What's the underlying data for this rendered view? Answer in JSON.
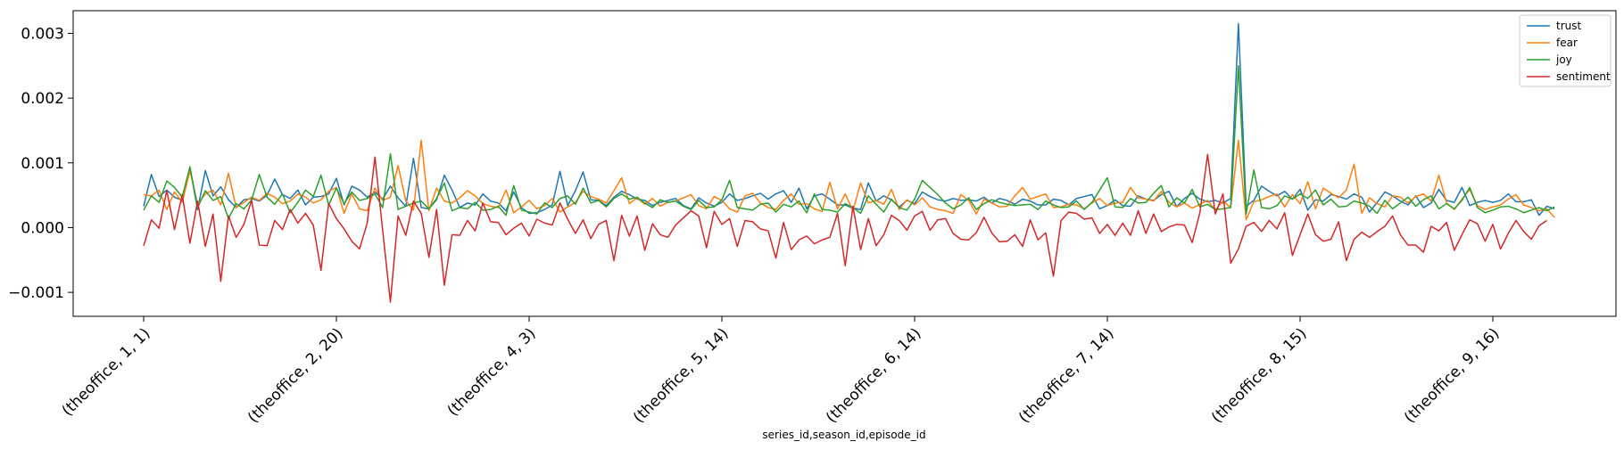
{
  "chart_data": {
    "type": "line",
    "xlabel": "series_id,season_id,episode_id",
    "ylabel": "",
    "ylim": [
      -0.00137,
      0.00335
    ],
    "x_tick_labels": [
      "(theoffice, 1, 1)",
      "(theoffice, 2, 20)",
      "(theoffice, 4, 3)",
      "(theoffice, 5, 14)",
      "(theoffice, 6, 14)",
      "(theoffice, 7, 14)",
      "(theoffice, 8, 15)",
      "(theoffice, 9, 16)"
    ],
    "x_tick_index": [
      0,
      25,
      50,
      75,
      100,
      125,
      150,
      175
    ],
    "y_ticks": [
      -0.001,
      0.0,
      0.001,
      0.002,
      0.003
    ],
    "y_tick_labels": [
      "−0.001",
      "0.000",
      "0.001",
      "0.002",
      "0.003"
    ],
    "legend_position": "top-right",
    "grid": false,
    "series": [
      {
        "name": "trust",
        "color": "#1f77b4",
        "values": [
          0.00033,
          0.00082,
          0.00048,
          0.00058,
          0.00047,
          0.00042,
          0.00092,
          0.00028,
          0.00088,
          0.00049,
          0.00063,
          0.00043,
          0.00031,
          0.00043,
          0.00045,
          0.00041,
          0.0005,
          0.00075,
          0.00051,
          0.00045,
          0.00058,
          0.00035,
          0.00047,
          0.00048,
          0.00052,
          0.00076,
          0.00035,
          0.00064,
          0.00058,
          0.00047,
          0.00055,
          0.00044,
          0.00064,
          0.00046,
          0.00033,
          0.00107,
          0.00031,
          0.00029,
          0.00043,
          0.00081,
          0.00058,
          0.00031,
          0.00038,
          0.00035,
          0.00052,
          0.00041,
          0.00038,
          0.00026,
          0.00055,
          0.00031,
          0.00022,
          0.00023,
          0.00028,
          0.00035,
          0.00087,
          0.00034,
          0.00057,
          0.00086,
          0.00043,
          0.00042,
          0.00034,
          0.00047,
          0.00056,
          0.00051,
          0.00044,
          0.00042,
          0.00034,
          0.00039,
          0.00042,
          0.00045,
          0.00034,
          0.00029,
          0.00046,
          0.00038,
          0.00033,
          0.00039,
          0.00052,
          0.00042,
          0.00045,
          0.00049,
          0.00053,
          0.00044,
          0.00052,
          0.00057,
          0.00039,
          0.00061,
          0.00029,
          0.00049,
          0.00052,
          0.00044,
          0.00035,
          0.00035,
          0.0003,
          0.00028,
          0.00069,
          0.00041,
          0.00049,
          0.00043,
          0.00032,
          0.00042,
          0.00037,
          0.00055,
          0.00048,
          0.00043,
          0.00041,
          0.00045,
          0.00042,
          0.00043,
          0.00041,
          0.00047,
          0.00038,
          0.00045,
          0.00042,
          0.00036,
          0.00044,
          0.00041,
          0.00035,
          0.00035,
          0.00044,
          0.00042,
          0.00035,
          0.00045,
          0.00048,
          0.00051,
          0.00029,
          0.00034,
          0.00043,
          0.00034,
          0.00033,
          0.00049,
          0.00044,
          0.00042,
          0.00051,
          0.00056,
          0.00032,
          0.00045,
          0.00053,
          0.00044,
          0.0004,
          0.00042,
          0.00038,
          0.00045,
          0.00315,
          0.00033,
          0.00042,
          0.00064,
          0.00056,
          0.00049,
          0.00056,
          0.00044,
          0.00059,
          0.00027,
          0.00043,
          0.00041,
          0.00051,
          0.00048,
          0.00044,
          0.00052,
          0.00047,
          0.00024,
          0.00039,
          0.00055,
          0.00049,
          0.00041,
          0.00035,
          0.00049,
          0.00031,
          0.00038,
          0.00059,
          0.00042,
          0.00039,
          0.00062,
          0.00034,
          0.00039,
          0.00042,
          0.00039,
          0.00042,
          0.00052,
          0.0004,
          0.0004,
          0.00043,
          0.00019,
          0.00033,
          0.00029
        ]
      },
      {
        "name": "fear",
        "color": "#ff7f0e",
        "values": [
          0.00051,
          0.00049,
          0.00058,
          0.00028,
          0.00055,
          0.00039,
          0.00088,
          0.00036,
          0.00052,
          0.00058,
          0.00035,
          0.00084,
          0.00031,
          0.00039,
          0.00047,
          0.00042,
          0.00053,
          0.00047,
          0.00037,
          0.00041,
          0.00052,
          0.00047,
          0.00038,
          0.00043,
          0.00056,
          0.00062,
          0.00022,
          0.00052,
          0.00029,
          0.00026,
          0.00061,
          0.00042,
          0.00047,
          0.00096,
          0.00041,
          0.00027,
          0.00135,
          0.00026,
          0.00061,
          0.00041,
          0.00038,
          0.00046,
          0.00057,
          0.00049,
          0.00037,
          0.00033,
          0.00031,
          0.00058,
          0.00023,
          0.00032,
          0.00042,
          0.00029,
          0.00034,
          0.00045,
          0.00024,
          0.00032,
          0.00039,
          0.00056,
          0.00048,
          0.00044,
          0.00038,
          0.00057,
          0.00077,
          0.00037,
          0.00046,
          0.00036,
          0.00045,
          0.00033,
          0.00039,
          0.00041,
          0.00046,
          0.00051,
          0.00034,
          0.00029,
          0.00048,
          0.00042,
          0.00029,
          0.00024,
          0.00049,
          0.00053,
          0.00038,
          0.00031,
          0.00028,
          0.00042,
          0.00052,
          0.00036,
          0.00037,
          0.00029,
          0.00025,
          0.0007,
          0.00029,
          0.00052,
          0.00026,
          0.00069,
          0.00038,
          0.00042,
          0.00036,
          0.00059,
          0.00028,
          0.00043,
          0.00035,
          0.00046,
          0.00032,
          0.00028,
          0.00026,
          0.00022,
          0.00051,
          0.00042,
          0.00021,
          0.00044,
          0.00038,
          0.00032,
          0.00033,
          0.00049,
          0.00062,
          0.00044,
          0.00048,
          0.00052,
          0.00031,
          0.00032,
          0.00036,
          0.00035,
          0.00029,
          0.00038,
          0.00045,
          0.00034,
          0.00038,
          0.00039,
          0.00062,
          0.00046,
          0.00044,
          0.00041,
          0.00056,
          0.00039,
          0.00032,
          0.00038,
          0.0003,
          0.00036,
          0.00042,
          0.00027,
          0.00041,
          0.00031,
          0.00135,
          0.00012,
          0.0004,
          0.00043,
          0.00048,
          0.00052,
          0.00032,
          0.00051,
          0.00037,
          0.00071,
          0.00029,
          0.00061,
          0.00053,
          0.00046,
          0.00058,
          0.00098,
          0.00022,
          0.00046,
          0.00037,
          0.00032,
          0.00049,
          0.00047,
          0.00038,
          0.00048,
          0.00052,
          0.00041,
          0.00081,
          0.00038,
          0.00028,
          0.00044,
          0.00059,
          0.00034,
          0.00028,
          0.00032,
          0.00035,
          0.00044,
          0.00051,
          0.00035,
          0.00031,
          0.00026,
          0.00029,
          0.00016
        ]
      },
      {
        "name": "joy",
        "color": "#2ca02c",
        "values": [
          0.00027,
          0.00049,
          0.00039,
          0.00072,
          0.00062,
          0.00047,
          0.00094,
          0.00031,
          0.00057,
          0.00042,
          0.00048,
          0.00014,
          0.00037,
          0.00029,
          0.00043,
          0.00082,
          0.00047,
          0.00036,
          0.00052,
          0.00023,
          0.00039,
          0.00058,
          0.00048,
          0.00081,
          0.00035,
          0.00061,
          0.00037,
          0.00055,
          0.00042,
          0.00045,
          0.00052,
          0.00031,
          0.00114,
          0.00028,
          0.00033,
          0.00038,
          0.00041,
          0.00029,
          0.00045,
          0.00069,
          0.00026,
          0.00031,
          0.00029,
          0.00039,
          0.00027,
          0.00028,
          0.00033,
          0.00019,
          0.00065,
          0.00027,
          0.00024,
          0.00021,
          0.00038,
          0.00031,
          0.00045,
          0.00049,
          0.00036,
          0.00061,
          0.00038,
          0.00042,
          0.00032,
          0.00045,
          0.00052,
          0.00044,
          0.00047,
          0.00038,
          0.00031,
          0.00043,
          0.00039,
          0.00041,
          0.00033,
          0.00028,
          0.00042,
          0.00031,
          0.00032,
          0.00043,
          0.00073,
          0.00031,
          0.00029,
          0.00027,
          0.00036,
          0.00038,
          0.00024,
          0.00036,
          0.00032,
          0.00041,
          0.00023,
          0.00052,
          0.00028,
          0.00027,
          0.00024,
          0.00037,
          0.00031,
          0.00022,
          0.00049,
          0.00036,
          0.00024,
          0.00044,
          0.00031,
          0.00027,
          0.00044,
          0.00073,
          0.00062,
          0.00051,
          0.00038,
          0.00029,
          0.00035,
          0.00046,
          0.00028,
          0.00037,
          0.00043,
          0.00039,
          0.00036,
          0.00034,
          0.00035,
          0.00036,
          0.00028,
          0.00041,
          0.00035,
          0.00031,
          0.00032,
          0.00041,
          0.00028,
          0.00039,
          0.00058,
          0.00077,
          0.00032,
          0.00031,
          0.00045,
          0.00038,
          0.00039,
          0.00053,
          0.00065,
          0.00032,
          0.00046,
          0.00038,
          0.00059,
          0.00032,
          0.00036,
          0.00028,
          0.00029,
          0.00031,
          0.0025,
          0.00021,
          0.00089,
          0.00031,
          0.00029,
          0.00034,
          0.00049,
          0.00044,
          0.00052,
          0.00045,
          0.00058,
          0.00035,
          0.00044,
          0.00032,
          0.00033,
          0.00041,
          0.00038,
          0.00033,
          0.00022,
          0.00042,
          0.00029,
          0.00038,
          0.00047,
          0.00033,
          0.00043,
          0.00049,
          0.00029,
          0.00037,
          0.00029,
          0.00042,
          0.00062,
          0.00031,
          0.00023,
          0.00027,
          0.00032,
          0.00033,
          0.00029,
          0.00023,
          0.00027,
          0.00031,
          0.00026,
          0.00032
        ]
      },
      {
        "name": "sentiment",
        "color": "#d62728",
        "values": [
          -0.00028,
          0.00012,
          -1e-05,
          0.00057,
          -3e-05,
          0.00051,
          -0.00024,
          0.00041,
          -0.00029,
          0.00021,
          -0.00083,
          0.00018,
          -0.00015,
          5e-05,
          0.00042,
          -0.00027,
          -0.00028,
          0.00011,
          -3e-05,
          0.00028,
          7e-05,
          0.00022,
          4e-05,
          -0.00066,
          0.00037,
          0.00014,
          -2e-05,
          -0.00021,
          -0.00033,
          7e-05,
          0.00109,
          -4e-05,
          -0.00115,
          0.00018,
          -0.00012,
          0.00041,
          0.00022,
          -0.00046,
          0.00028,
          -0.00089,
          -0.00011,
          -0.00012,
          0.00011,
          -5e-05,
          0.00038,
          9e-05,
          8e-05,
          -0.00011,
          -1e-05,
          7e-05,
          -0.00013,
          0.00013,
          7e-05,
          4e-05,
          0.00038,
          0.00013,
          -9e-05,
          0.00012,
          -0.00017,
          5e-05,
          0.00011,
          -0.00051,
          0.00019,
          -0.00013,
          0.00018,
          -0.00035,
          6e-05,
          -0.00011,
          -0.00015,
          4e-05,
          0.00015,
          0.00026,
          0.00018,
          -0.00031,
          0.00025,
          5e-05,
          0.00014,
          -0.00029,
          0.00011,
          9e-05,
          -2e-05,
          -5e-05,
          -0.00047,
          8e-05,
          -0.00034,
          -0.00019,
          -0.00013,
          -0.00025,
          -0.00019,
          -0.00015,
          0.00022,
          -0.00059,
          0.00033,
          -0.00034,
          0.00014,
          -0.00028,
          -0.00011,
          0.00019,
          0.00011,
          -4e-05,
          0.00018,
          0.00025,
          -4e-05,
          0.00012,
          0.00014,
          -9e-05,
          -0.00018,
          -0.00019,
          -8e-05,
          0.00016,
          -8e-05,
          -0.00022,
          -0.00021,
          -0.00011,
          -0.00029,
          0.00012,
          -0.00019,
          -8e-05,
          -0.00075,
          0.00011,
          0.00024,
          0.00022,
          0.00013,
          0.00015,
          -9e-05,
          5e-05,
          -0.00012,
          7e-05,
          -0.00012,
          0.00026,
          -9e-05,
          0.00021,
          -6e-05,
          1e-05,
          5e-05,
          4e-05,
          -0.00023,
          0.00023,
          0.00113,
          0.00021,
          0.00052,
          -0.00055,
          -0.00033,
          2e-05,
          8e-05,
          -6e-05,
          0.00011,
          -2e-05,
          0.00023,
          -0.00043,
          -0.00011,
          0.00021,
          -0.00011,
          -0.00021,
          -0.00018,
          9e-05,
          -0.00051,
          -0.00018,
          -7e-05,
          -0.00015,
          -6e-05,
          2e-05,
          0.00018,
          -0.00011,
          -0.00027,
          -0.00027,
          -0.00038,
          2e-05,
          -5e-05,
          8e-05,
          -0.00035,
          -0.00011,
          0.00012,
          6e-05,
          -0.00021,
          5e-05,
          -0.00033,
          -9e-05,
          0.00011,
          -6e-05,
          -0.00018,
          3e-05,
          0.00011
        ]
      }
    ]
  }
}
